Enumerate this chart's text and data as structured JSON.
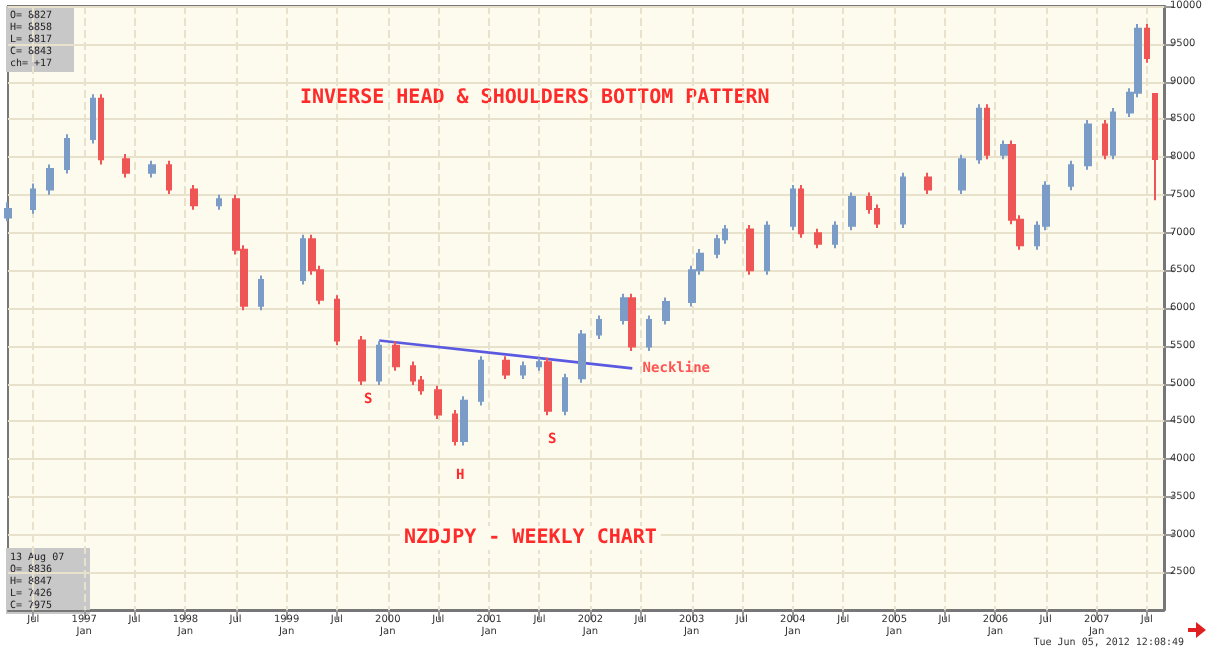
{
  "chart_data": {
    "type": "candlestick",
    "title": "INVERSE HEAD & SHOULDERS BOTTOM PATTERN",
    "subtitle": "NZDJPY - WEEKLY CHART",
    "x": [
      "1996-04",
      "1996-07",
      "1996-09",
      "1996-11",
      "1997-02",
      "1997-03",
      "1997-06",
      "1997-09",
      "1997-11",
      "1998-02",
      "1998-05",
      "1998-07",
      "1998-08",
      "1998-10",
      "1999-03",
      "1999-04",
      "1999-05",
      "1999-07",
      "1999-10",
      "1999-12",
      "2000-02",
      "2000-04",
      "2000-05",
      "2000-07",
      "2000-09",
      "2000-10",
      "2000-12",
      "2001-03",
      "2001-05",
      "2001-07",
      "2001-08",
      "2001-10",
      "2001-12",
      "2002-02",
      "2002-05",
      "2002-06",
      "2002-08",
      "2002-10",
      "2003-01",
      "2003-02",
      "2003-04",
      "2003-05",
      "2003-08",
      "2003-10",
      "2004-01",
      "2004-02",
      "2004-04",
      "2004-06",
      "2004-08",
      "2004-10",
      "2004-11",
      "2005-02",
      "2005-05",
      "2005-09",
      "2005-11",
      "2005-12",
      "2006-02",
      "2006-03",
      "2006-04",
      "2006-06",
      "2006-07",
      "2006-10",
      "2006-12",
      "2007-02",
      "2007-03",
      "2007-05",
      "2007-06",
      "2007-07",
      "2007-08"
    ],
    "ohlc": [
      [
        7200,
        7400,
        7150,
        7310
      ],
      [
        7310,
        7650,
        7250,
        7570
      ],
      [
        7570,
        7900,
        7500,
        7840
      ],
      [
        7840,
        8300,
        7780,
        8240
      ],
      [
        8240,
        8830,
        8180,
        8770
      ],
      [
        8770,
        8830,
        7900,
        7970
      ],
      [
        7970,
        8040,
        7730,
        7790
      ],
      [
        7790,
        7950,
        7730,
        7890
      ],
      [
        7890,
        7950,
        7510,
        7570
      ],
      [
        7570,
        7630,
        7300,
        7360
      ],
      [
        7360,
        7500,
        7300,
        7440
      ],
      [
        7440,
        7500,
        6710,
        6770
      ],
      [
        6770,
        6830,
        5970,
        6030
      ],
      [
        6030,
        6430,
        5970,
        6370
      ],
      [
        6370,
        6970,
        6310,
        6910
      ],
      [
        6910,
        6970,
        6440,
        6500
      ],
      [
        6500,
        6560,
        6050,
        6110
      ],
      [
        6110,
        6170,
        5510,
        5570
      ],
      [
        5570,
        5630,
        4980,
        5040
      ],
      [
        5040,
        5560,
        4980,
        5500
      ],
      [
        5500,
        5560,
        5170,
        5230
      ],
      [
        5230,
        5290,
        4980,
        5040
      ],
      [
        5040,
        5100,
        4850,
        4910
      ],
      [
        4910,
        4970,
        4530,
        4590
      ],
      [
        4590,
        4650,
        4180,
        4240
      ],
      [
        4240,
        4830,
        4180,
        4770
      ],
      [
        4770,
        5360,
        4710,
        5300
      ],
      [
        5300,
        5360,
        5060,
        5120
      ],
      [
        5120,
        5290,
        5060,
        5230
      ],
      [
        5230,
        5340,
        5170,
        5280
      ],
      [
        5280,
        5340,
        4580,
        4640
      ],
      [
        4640,
        5130,
        4580,
        5070
      ],
      [
        5070,
        5710,
        5010,
        5650
      ],
      [
        5650,
        5900,
        5590,
        5840
      ],
      [
        5840,
        6190,
        5780,
        6130
      ],
      [
        6130,
        6190,
        5430,
        5490
      ],
      [
        5490,
        5900,
        5430,
        5840
      ],
      [
        5840,
        6140,
        5780,
        6080
      ],
      [
        6080,
        6560,
        6020,
        6500
      ],
      [
        6500,
        6780,
        6440,
        6720
      ],
      [
        6720,
        6970,
        6660,
        6910
      ],
      [
        6910,
        7100,
        6850,
        7040
      ],
      [
        7040,
        7100,
        6440,
        6500
      ],
      [
        6500,
        7150,
        6440,
        7090
      ],
      [
        7090,
        7630,
        7030,
        7570
      ],
      [
        7570,
        7630,
        6930,
        6990
      ],
      [
        6990,
        7050,
        6790,
        6850
      ],
      [
        6850,
        7150,
        6790,
        7090
      ],
      [
        7090,
        7530,
        7030,
        7470
      ],
      [
        7470,
        7530,
        7250,
        7310
      ],
      [
        7310,
        7370,
        7060,
        7120
      ],
      [
        7120,
        7790,
        7060,
        7730
      ],
      [
        7730,
        7790,
        7510,
        7570
      ],
      [
        7570,
        8030,
        7510,
        7970
      ],
      [
        7970,
        8700,
        7910,
        8640
      ],
      [
        8640,
        8700,
        7970,
        8030
      ],
      [
        8030,
        8220,
        7970,
        8160
      ],
      [
        8160,
        8220,
        7110,
        7170
      ],
      [
        7170,
        7230,
        6770,
        6830
      ],
      [
        6830,
        7150,
        6770,
        7090
      ],
      [
        7090,
        7680,
        7030,
        7620
      ],
      [
        7620,
        7950,
        7560,
        7890
      ],
      [
        7890,
        8490,
        7830,
        8430
      ],
      [
        8430,
        8490,
        7970,
        8030
      ],
      [
        8030,
        8650,
        7970,
        8590
      ],
      [
        8590,
        8910,
        8530,
        8850
      ],
      [
        8850,
        9760,
        8790,
        9700
      ],
      [
        9700,
        9760,
        9250,
        9310
      ],
      [
        8836,
        8847,
        7426,
        7975
      ]
    ],
    "series": [
      {
        "type": "line",
        "color": "#5a5ae0",
        "x": [
          "1999-12",
          "2002-06"
        ],
        "values": [
          5570,
          5200
        ]
      }
    ],
    "xlim": [
      "1996-04",
      "2007-09"
    ],
    "xticks": [
      {
        "value": "1996-07",
        "label": "Jul"
      },
      {
        "value": "1997-01",
        "label": "1997\nJan"
      },
      {
        "value": "1997-07",
        "label": "Jul"
      },
      {
        "value": "1998-01",
        "label": "1998\nJan"
      },
      {
        "value": "1998-07",
        "label": "Jul"
      },
      {
        "value": "1999-01",
        "label": "1999\nJan"
      },
      {
        "value": "1999-07",
        "label": "Jul"
      },
      {
        "value": "2000-01",
        "label": "2000\nJan"
      },
      {
        "value": "2000-07",
        "label": "Jul"
      },
      {
        "value": "2001-01",
        "label": "2001\nJan"
      },
      {
        "value": "2001-07",
        "label": "Jul"
      },
      {
        "value": "2002-01",
        "label": "2002\nJan"
      },
      {
        "value": "2002-07",
        "label": "Jul"
      },
      {
        "value": "2003-01",
        "label": "2003\nJan"
      },
      {
        "value": "2003-07",
        "label": "Jul"
      },
      {
        "value": "2004-01",
        "label": "2004\nJan"
      },
      {
        "value": "2004-07",
        "label": "Jul"
      },
      {
        "value": "2005-01",
        "label": "2005\nJan"
      },
      {
        "value": "2005-07",
        "label": "Jul"
      },
      {
        "value": "2006-01",
        "label": "2006\nJan"
      },
      {
        "value": "2006-07",
        "label": "Jul"
      },
      {
        "value": "2007-01",
        "label": "2007\nJan"
      },
      {
        "value": "2007-07",
        "label": "Jul"
      }
    ],
    "ylim": [
      2000,
      10000
    ],
    "yticks": [
      2500,
      3000,
      3500,
      4000,
      4500,
      5000,
      5500,
      6000,
      6500,
      7000,
      7500,
      8000,
      8500,
      9000,
      9500,
      10000
    ],
    "grid": true,
    "annotations": [
      "S",
      "H",
      "S",
      {
        "text": "Neckline",
        "x": "2002-07",
        "y": 5200
      },
      "O= 8827\nH= 8858\nL= 8817\nC= 8843\nch= +17",
      "13 Aug 07\nO= 8836\nH= 8847\nL= 7426\nC= 7975",
      "Tue Jun 05, 2012 12:08:49"
    ]
  }
}
